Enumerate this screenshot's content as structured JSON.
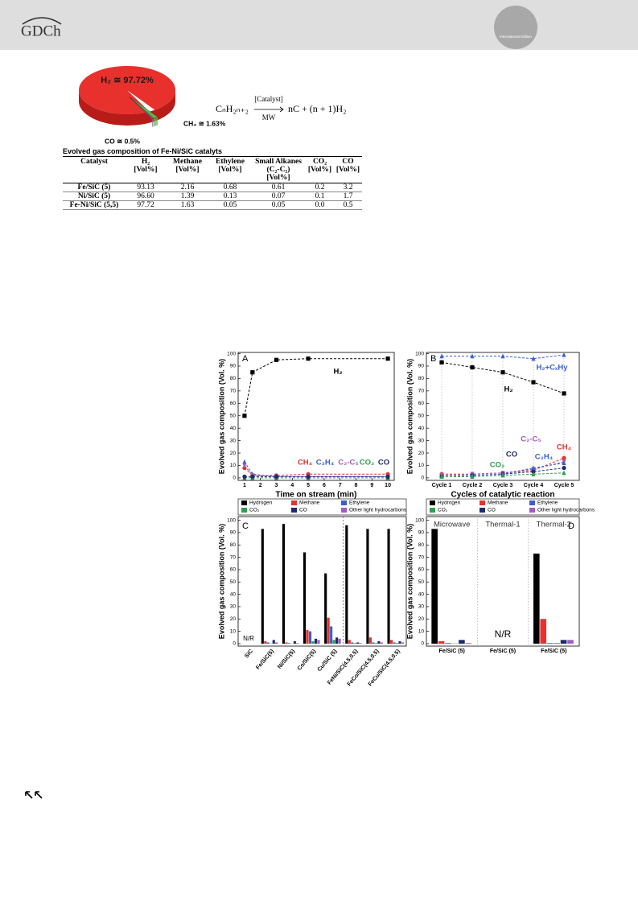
{
  "header": {
    "logo": "GDCh",
    "badge": "International Edition"
  },
  "equation": {
    "lhs": "CₙH₂ₙ₊₂",
    "above": "[Catalyst]",
    "below": "MW",
    "rhs": "nC + (n + 1)H₂"
  },
  "table": {
    "caption": "Evolved gas composition of Fe-Ni/SiC catalyts",
    "header": [
      [
        "Catalyst"
      ],
      [
        "H₂",
        "[Vol%]"
      ],
      [
        "Methane",
        "[Vol%]"
      ],
      [
        "Ethylene",
        "[Vol%]"
      ],
      [
        "Small Alkanes",
        "(C₂-C₅)",
        "[Vol%]"
      ],
      [
        "CO₂",
        "[Vol%]"
      ],
      [
        "CO",
        "[Vol%]"
      ]
    ],
    "rows": [
      [
        "Fe/SiC (5)",
        "93.13",
        "2.16",
        "0.68",
        "0.61",
        "0.2",
        "3.2"
      ],
      [
        "Ni/SiC (5)",
        "96.60",
        "1.39",
        "0.13",
        "0.07",
        "0.1",
        "1.7"
      ],
      [
        "Fe-Ni/SiC (5,5)",
        "97.72",
        "1.63",
        "0.05",
        "0.05",
        "0.0",
        "0.5"
      ]
    ]
  },
  "chart_data": [
    {
      "type": "pie",
      "values": [
        97.72,
        1.63,
        0.5
      ],
      "value_labels": [
        "H₂ ≅ 97.72%",
        "CH₄ ≅ 1.63%",
        "CO ≅ 0.5%"
      ],
      "colors": [
        "#e8312c",
        "#5cb848",
        "#9b59b6"
      ]
    },
    {
      "type": "line",
      "panel": "A",
      "x": [
        1,
        1.5,
        3,
        5,
        10
      ],
      "xlim": [
        0.6,
        10.4
      ],
      "xticks": [
        1,
        2,
        3,
        4,
        5,
        6,
        7,
        8,
        9,
        10
      ],
      "ylim": [
        -2,
        101
      ],
      "yticks": [
        0,
        10,
        20,
        30,
        40,
        50,
        60,
        70,
        80,
        90,
        100
      ],
      "xlabel": "Time on stream (min)",
      "ylabel": "Evolved gas composition (Vol. %)",
      "line_style": "dashed",
      "series": [
        {
          "name": "H₂",
          "color": "#000000",
          "marker": "square",
          "values": [
            50,
            85,
            95,
            96,
            96
          ]
        },
        {
          "name": "CH₄",
          "color": "#e8312c",
          "marker": "circle",
          "values": [
            8,
            2,
            2,
            3,
            3
          ]
        },
        {
          "name": "C₂H₄",
          "color": "#3a5fcd",
          "marker": "triangle",
          "values": [
            13,
            3,
            1,
            1,
            1
          ]
        },
        {
          "name": "C₂-C₅",
          "color": "#a05cc0",
          "marker": "triangle-down",
          "values": [
            10,
            2,
            1,
            1,
            1
          ]
        },
        {
          "name": "CO₂",
          "color": "#2e9e4f",
          "marker": "triangle",
          "values": [
            0,
            0,
            0,
            0,
            0
          ]
        },
        {
          "name": "CO",
          "color": "#1f2a6e",
          "marker": "circle",
          "values": [
            1,
            1,
            1,
            1,
            1
          ]
        }
      ]
    },
    {
      "type": "line",
      "panel": "B",
      "categories": [
        "Cycle 1",
        "Cycle 2",
        "Cycle 3",
        "Cycle 4",
        "Cycle 5"
      ],
      "ylim": [
        -2,
        101
      ],
      "yticks": [
        0,
        10,
        20,
        30,
        40,
        50,
        60,
        70,
        80,
        90,
        100
      ],
      "xlabel": "Cycles of catalytic reaction",
      "ylabel": "Evolved gas composition (Vol. %)",
      "line_style": "dashed",
      "xgrid": true,
      "series": [
        {
          "name": "H₂+CₓHy",
          "color": "#3a5fcd",
          "marker": "triangle",
          "values": [
            98,
            98,
            98,
            96,
            99
          ]
        },
        {
          "name": "H₂",
          "color": "#000000",
          "marker": "square",
          "values": [
            93,
            89,
            85,
            77,
            68
          ]
        },
        {
          "name": "CH₄",
          "color": "#e8312c",
          "marker": "circle",
          "values": [
            3,
            3,
            4,
            6,
            16
          ]
        },
        {
          "name": "C₂-C₅",
          "color": "#a05cc0",
          "marker": "triangle-down",
          "values": [
            2,
            3,
            4,
            7,
            13
          ]
        },
        {
          "name": "CO",
          "color": "#1f2a6e",
          "marker": "circle",
          "values": [
            1,
            2,
            3,
            5,
            8
          ]
        },
        {
          "name": "C₂H₄",
          "color": "#3a5fcd",
          "marker": "triangle",
          "values": [
            1,
            2,
            3,
            8,
            12
          ]
        },
        {
          "name": "CO₂",
          "color": "#2e9e4f",
          "marker": "triangle",
          "values": [
            1,
            1,
            2,
            3,
            4
          ]
        }
      ]
    },
    {
      "type": "bar",
      "panel": "C",
      "categories": [
        "SiC",
        "Fe/SiC(5)",
        "Ni/SiC(5)",
        "Co/SiC(5)",
        "Cu/SiC (5)",
        "FeNi/SiC(4.5,0.5)",
        "FeCo/SiC(4.5,0.5)",
        "FeCu/SiC(4.5,0.5)"
      ],
      "ylim": [
        -2,
        103
      ],
      "yticks": [
        0,
        10,
        20,
        30,
        40,
        50,
        60,
        70,
        80,
        90,
        100
      ],
      "ylabel": "Evolved gas composition (Vol. %)",
      "legend": "top",
      "no_result_label": "N/R",
      "series": [
        {
          "name": "Hydrogen",
          "color": "#000000",
          "values": [
            null,
            93,
            97,
            74,
            57,
            96,
            93,
            93
          ]
        },
        {
          "name": "Methane",
          "color": "#e8312c",
          "values": [
            null,
            2,
            1,
            11,
            21,
            3,
            5,
            3
          ]
        },
        {
          "name": "Ethylene",
          "color": "#3a5fcd",
          "values": [
            null,
            1,
            0.5,
            10,
            14,
            1,
            1,
            1
          ]
        },
        {
          "name": "CO₂",
          "color": "#2e9e4f",
          "values": [
            null,
            0.2,
            0.1,
            2,
            3,
            0.5,
            0.5,
            0.5
          ]
        },
        {
          "name": "CO",
          "color": "#1f2a6e",
          "values": [
            null,
            3,
            2,
            4,
            5,
            1,
            2,
            2
          ]
        },
        {
          "name": "Other light hydrocarbons",
          "color": "#a05cc0",
          "values": [
            null,
            1,
            0.5,
            3,
            4,
            0.5,
            1,
            1
          ]
        }
      ]
    },
    {
      "type": "bar",
      "panel": "D",
      "categories": [
        "Fe/SiC (5)",
        "Fe/SiC (5)",
        "Fe/SiC (5)"
      ],
      "groups": [
        "Microwave",
        "Thermal-1",
        "Thermal-2"
      ],
      "ylim": [
        -2,
        103
      ],
      "yticks": [
        0,
        10,
        20,
        30,
        40,
        50,
        60,
        70,
        80,
        90,
        100
      ],
      "ylabel": "Evolved gas composition (Vol. %)",
      "legend": "top",
      "no_result_label": "N/R",
      "xgrid": true,
      "series": [
        {
          "name": "Hydrogen",
          "color": "#000000",
          "values": [
            93,
            null,
            73
          ]
        },
        {
          "name": "Methane",
          "color": "#e8312c",
          "values": [
            2,
            null,
            20
          ]
        },
        {
          "name": "Ethylene",
          "color": "#3a5fcd",
          "values": [
            0.5,
            null,
            0.5
          ]
        },
        {
          "name": "CO₂",
          "color": "#2e9e4f",
          "values": [
            0.2,
            null,
            0.5
          ]
        },
        {
          "name": "CO",
          "color": "#1f2a6e",
          "values": [
            3,
            null,
            3
          ]
        },
        {
          "name": "Other light hydrocarbons",
          "color": "#a05cc0",
          "values": [
            0.5,
            null,
            3
          ]
        }
      ]
    }
  ]
}
